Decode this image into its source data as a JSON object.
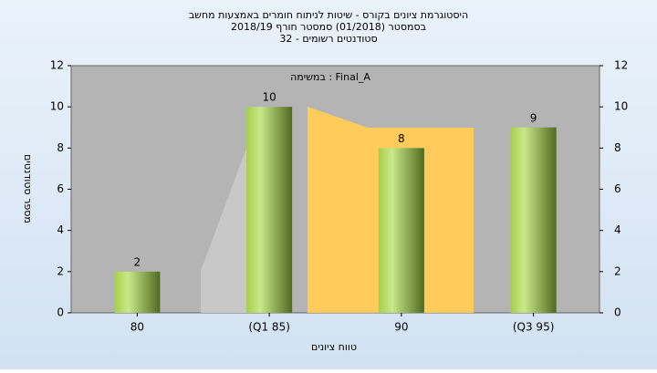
{
  "chart_data": {
    "type": "bar",
    "title": [
      "היסטוגרמת ציונים בקורס - שיטות לניתוח חומרים באמצעות מחשב",
      "בסמסטר (01/2018) סמסטר חורף 2018/19",
      "סטודנטים רשומים - 32"
    ],
    "annotation": "במשימה : Final_A",
    "x_label": "טווח ציונים",
    "y_label": "מספר סטודנטים",
    "categories": [
      "80",
      "(Q1 85)",
      "90",
      "(Q3 95)"
    ],
    "values": [
      2,
      10,
      8,
      9
    ],
    "ylim": [
      0,
      12
    ],
    "yticks": [
      0,
      2,
      4,
      6,
      8,
      10,
      12
    ],
    "y2lim": [
      0,
      12
    ],
    "y2ticks": [
      0,
      2,
      4,
      6,
      8,
      10,
      12
    ]
  }
}
